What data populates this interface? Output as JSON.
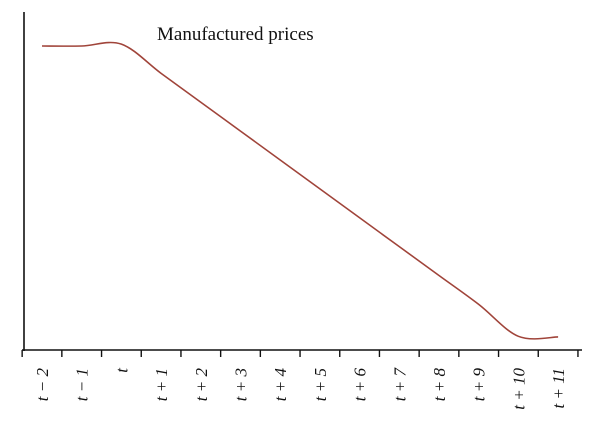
{
  "chart_data": {
    "type": "line",
    "title": "Manufactured prices",
    "xlabel": "",
    "ylabel": "",
    "categories": [
      "t − 2",
      "t − 1",
      "t",
      "t + 1",
      "t + 2",
      "t + 3",
      "t + 4",
      "t + 5",
      "t + 6",
      "t + 7",
      "t + 8",
      "t + 9",
      "t + 10",
      "t + 11"
    ],
    "series": [
      {
        "values": [
          100,
          100,
          100.6,
          91,
          81.5,
          72,
          62.5,
          53,
          43.5,
          34,
          24.5,
          15,
          4.5,
          4.3
        ]
      }
    ],
    "ylim": [
      0,
      110
    ],
    "grid": false,
    "legend": "none",
    "colors": {
      "line": "#a0443a",
      "axis": "#111111"
    }
  }
}
